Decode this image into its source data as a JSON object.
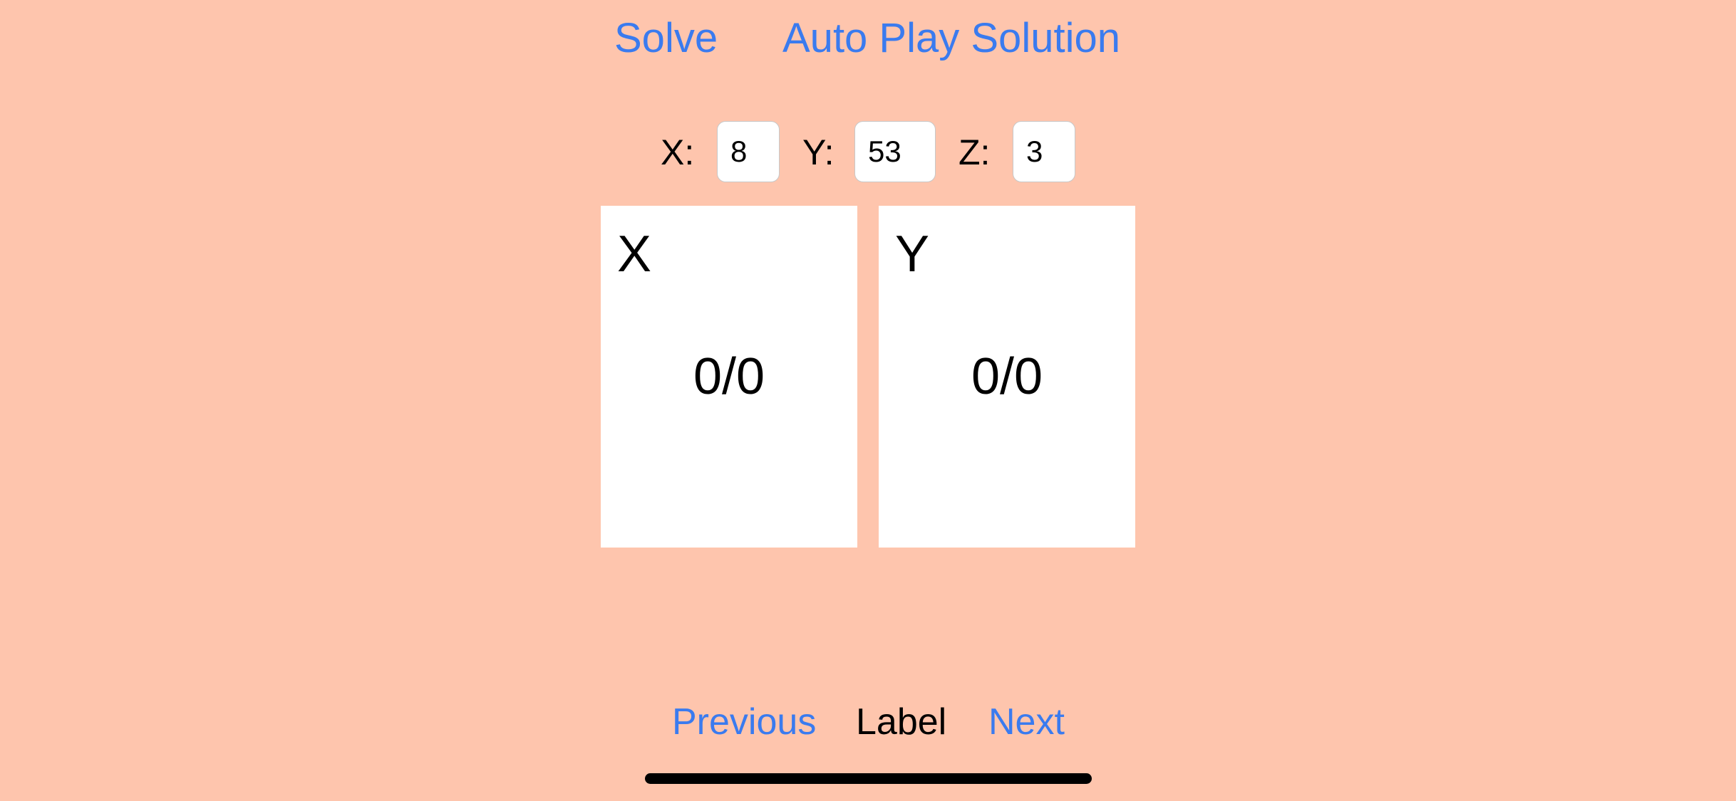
{
  "toolbar": {
    "solve_label": "Solve",
    "autoplay_label": "Auto Play Solution"
  },
  "inputs": {
    "x_label": "X:",
    "x_value": "8",
    "y_label": "Y:",
    "y_value": "53",
    "z_label": "Z:",
    "z_value": "3"
  },
  "cards": [
    {
      "title": "X",
      "value": "0/0"
    },
    {
      "title": "Y",
      "value": "0/0"
    }
  ],
  "navigation": {
    "previous_label": "Previous",
    "center_label": "Label",
    "next_label": "Next"
  },
  "colors": {
    "background": "#FEC5AD",
    "accent": "#3A7BEF",
    "card": "#FFFFFF"
  }
}
